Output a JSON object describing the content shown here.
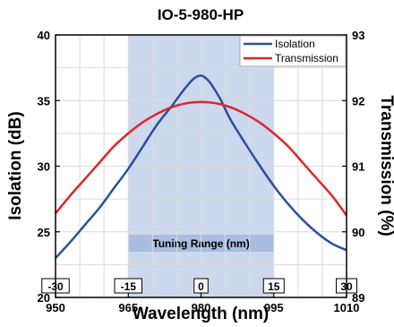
{
  "chart_data": {
    "type": "line",
    "title": "IO-5-980-HP",
    "xlabel": "Wavelength (nm)",
    "ylabel_left": "Isolation (dB)",
    "ylabel_right": "Transmission (%)",
    "xlim": [
      950,
      1010
    ],
    "ylim_left": [
      20,
      40
    ],
    "ylim_right": [
      89,
      93
    ],
    "x_ticks": [
      950,
      965,
      980,
      995,
      1010
    ],
    "y_ticks_left": [
      20,
      25,
      30,
      35,
      40
    ],
    "y_ticks_right": [
      89,
      90,
      91,
      92,
      93
    ],
    "grid": true,
    "legend_position": "top-right",
    "series": [
      {
        "name": "Isolation",
        "axis": "left",
        "color": "#2a4fa0",
        "x": [
          950,
          953,
          956,
          959,
          962,
          965,
          968,
          971,
          974,
          976,
          978,
          979,
          980,
          981,
          982,
          984,
          986,
          989,
          992,
          995,
          998,
          1001,
          1004,
          1007,
          1010
        ],
        "y": [
          23.0,
          24.2,
          25.5,
          26.8,
          28.3,
          29.8,
          31.5,
          33.2,
          34.6,
          35.6,
          36.5,
          36.8,
          36.9,
          36.7,
          36.3,
          35.1,
          33.6,
          31.8,
          30.1,
          28.5,
          27.1,
          25.9,
          24.9,
          24.1,
          23.6
        ]
      },
      {
        "name": "Transmission",
        "axis": "right",
        "color": "#e0262a",
        "x": [
          950,
          953,
          956,
          959,
          962,
          965,
          968,
          971,
          974,
          977,
          980,
          983,
          986,
          989,
          992,
          995,
          998,
          1001,
          1004,
          1007,
          1010
        ],
        "y": [
          90.28,
          90.55,
          90.8,
          91.05,
          91.3,
          91.5,
          91.67,
          91.8,
          91.9,
          91.96,
          91.98,
          91.96,
          91.9,
          91.8,
          91.67,
          91.5,
          91.3,
          91.05,
          90.8,
          90.55,
          90.25
        ]
      }
    ],
    "tuning_range": {
      "label": "Tuning Range (nm)",
      "x_start": 965,
      "x_end": 995,
      "offsets": [
        {
          "label": "-30",
          "x": 950
        },
        {
          "label": "-15",
          "x": 965
        },
        {
          "label": "0",
          "x": 980
        },
        {
          "label": "15",
          "x": 995
        },
        {
          "label": "30",
          "x": 1010
        }
      ]
    },
    "colors": {
      "isolation": "#2a4fa0",
      "transmission": "#e0262a",
      "tuning_band": "#ccd8ee",
      "tuning_header": "#a9bde0",
      "grid": "#dcdcdc"
    }
  }
}
